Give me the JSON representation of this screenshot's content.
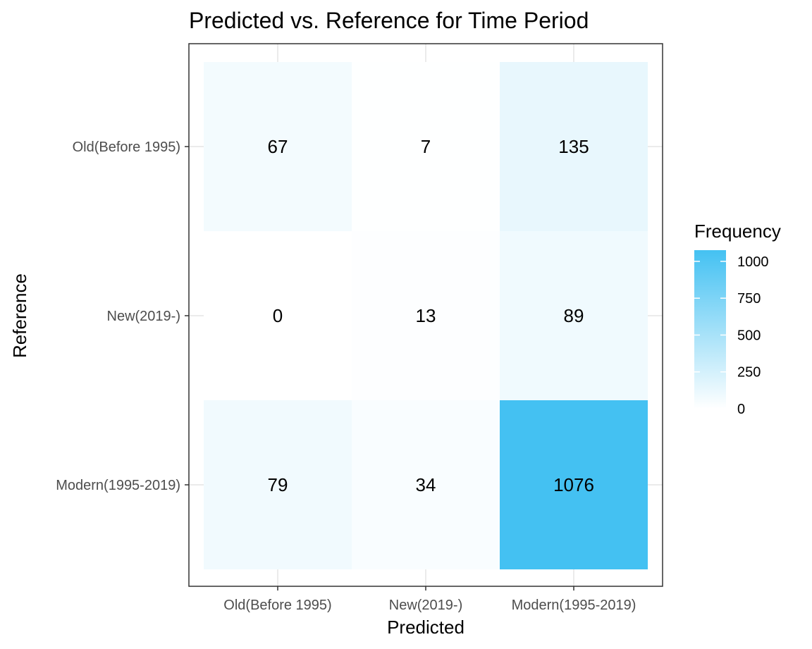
{
  "chart_data": {
    "type": "heatmap",
    "title": "Predicted vs. Reference for Time Period",
    "xlabel": "Predicted",
    "ylabel": "Reference",
    "x_categories": [
      "Old(Before 1995)",
      "New(2019-)",
      "Modern(1995-2019)"
    ],
    "y_categories": [
      "Old(Before 1995)",
      "New(2019-)",
      "Modern(1995-2019)"
    ],
    "values": [
      [
        67,
        7,
        135
      ],
      [
        0,
        13,
        89
      ],
      [
        79,
        34,
        1076
      ]
    ],
    "legend": {
      "title": "Frequency",
      "ticks": [
        1000,
        750,
        500,
        250,
        0
      ],
      "min": 0,
      "max": 1076,
      "placement": "right"
    },
    "colors": {
      "low": "#ffffff",
      "high": "#44c1f2",
      "grid": "#ebebeb",
      "border": "#333333"
    },
    "grid": true
  }
}
